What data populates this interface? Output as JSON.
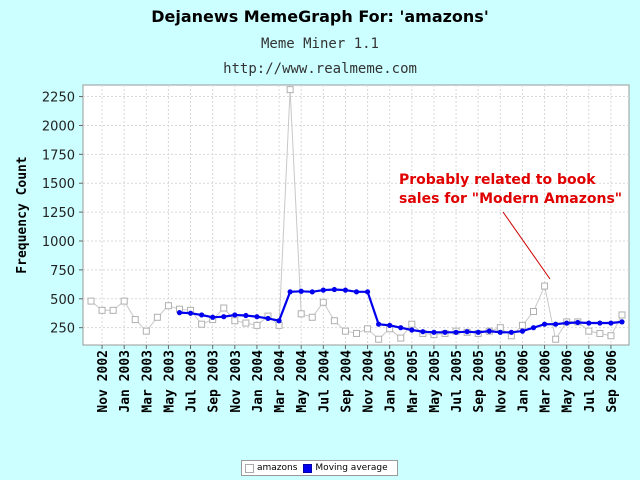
{
  "chart_data": {
    "type": "line",
    "title": "Dejanews MemeGraph For: 'amazons'",
    "subtitle": "Meme Miner 1.1",
    "url": "http://www.realmeme.com",
    "ylabel": "Frequency Count",
    "ylim": [
      100,
      2350
    ],
    "yticks": [
      250,
      500,
      750,
      1000,
      1250,
      1500,
      1750,
      2000,
      2250
    ],
    "x_tick_labels": [
      "Nov 2002",
      "Jan 2003",
      "Mar 2003",
      "May 2003",
      "Jul 2003",
      "Sep 2003",
      "Nov 2003",
      "Jan 2004",
      "Mar 2004",
      "May 2004",
      "Jul 2004",
      "Sep 2004",
      "Nov 2004",
      "Jan 2005",
      "Mar 2005",
      "May 2005",
      "Jul 2005",
      "Sep 2005",
      "Nov 2005",
      "Jan 2006",
      "Mar 2006",
      "May 2006",
      "Jul 2006",
      "Sep 2006"
    ],
    "grid": true,
    "series": [
      {
        "name": "amazons",
        "color": "#c8c8c8",
        "marker": "open-square",
        "values": [
          480,
          400,
          400,
          480,
          320,
          220,
          340,
          440,
          410,
          400,
          280,
          320,
          420,
          310,
          290,
          270,
          350,
          270,
          2310,
          370,
          340,
          470,
          310,
          220,
          200,
          240,
          150,
          240,
          160,
          280,
          200,
          190,
          200,
          220,
          210,
          200,
          220,
          250,
          180,
          270,
          390,
          610,
          150,
          300,
          300,
          220,
          200,
          180,
          360
        ]
      },
      {
        "name": "Moving average",
        "color": "#0000ee",
        "marker": "dot",
        "values": [
          null,
          null,
          null,
          null,
          null,
          null,
          null,
          null,
          380,
          375,
          360,
          340,
          345,
          360,
          355,
          345,
          330,
          310,
          560,
          565,
          560,
          575,
          580,
          575,
          560,
          560,
          280,
          270,
          250,
          230,
          215,
          210,
          210,
          210,
          215,
          210,
          220,
          210,
          210,
          220,
          250,
          280,
          280,
          290,
          295,
          290,
          290,
          290,
          300
        ]
      }
    ],
    "annotation": {
      "lines": [
        "Probably related to book",
        "sales for \"Modern Amazons\""
      ],
      "color": "#e00000"
    },
    "legend": {
      "position": "bottom-center",
      "items": [
        "amazons",
        "Moving average"
      ]
    }
  }
}
